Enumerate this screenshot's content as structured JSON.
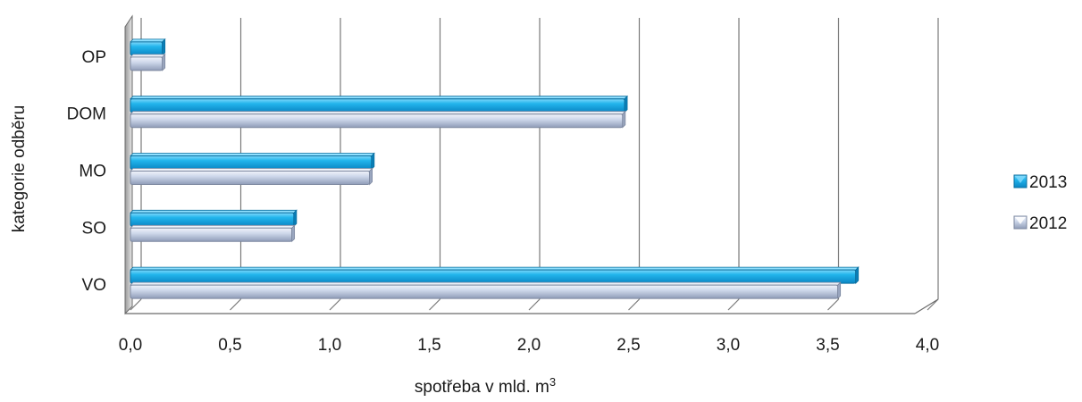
{
  "chart_data": {
    "type": "bar",
    "orientation": "horizontal",
    "style": "3d",
    "title": "",
    "xlabel": "spotřeba v mld. m",
    "xlabel_superscript": "3",
    "ylabel": "kategorie odběru",
    "xlim": [
      0,
      4.0
    ],
    "xticks": [
      "0,0",
      "0,5",
      "1,0",
      "1,5",
      "2,0",
      "2,5",
      "3,0",
      "3,5",
      "4,0"
    ],
    "categories": [
      "OP",
      "DOM",
      "MO",
      "SO",
      "VO"
    ],
    "series": [
      {
        "name": "2013",
        "color": "#1fb2e8",
        "values": [
          0.16,
          2.48,
          1.21,
          0.82,
          3.64
        ]
      },
      {
        "name": "2012",
        "color": "#c3cfe4",
        "values": [
          0.16,
          2.47,
          1.2,
          0.81,
          3.55
        ]
      }
    ],
    "grid": true,
    "legend_position": "right",
    "legend_order": [
      "2013",
      "2012"
    ]
  }
}
